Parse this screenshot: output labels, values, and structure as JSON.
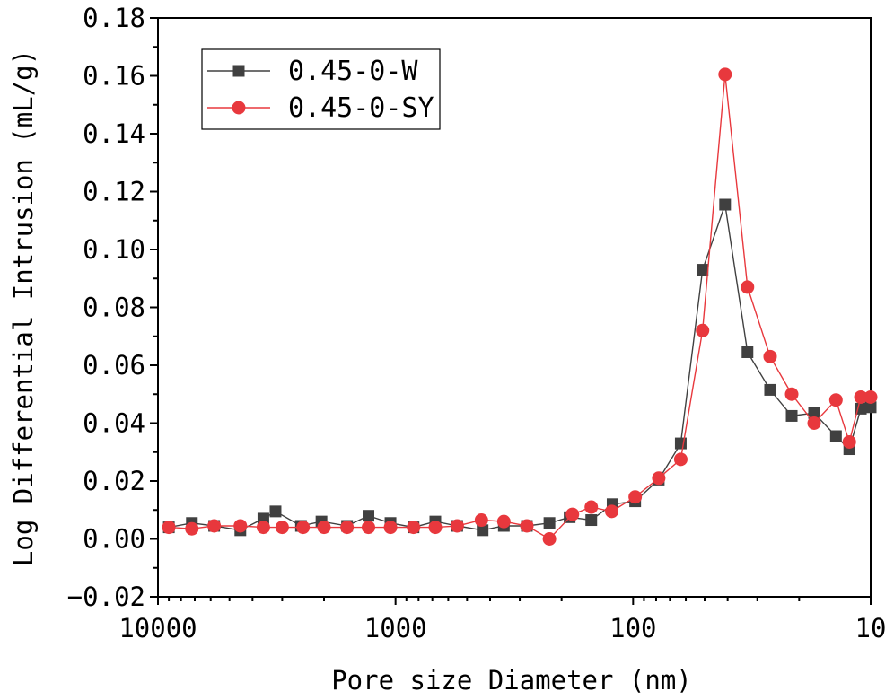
{
  "chart_data": {
    "type": "line",
    "title": "",
    "xlabel": "Pore size Diameter (nm)",
    "ylabel": "Log Differential Intrusion (mL/g)",
    "x_scale": "log",
    "x_reversed": true,
    "xlim": [
      10000,
      10
    ],
    "ylim": [
      -0.02,
      0.18
    ],
    "x_ticks": [
      {
        "value": 10000,
        "label": "10000"
      },
      {
        "value": 1000,
        "label": "1000"
      },
      {
        "value": 100,
        "label": "100"
      },
      {
        "value": 10,
        "label": "10"
      }
    ],
    "y_ticks": [
      {
        "value": -0.02,
        "label": "−0.02"
      },
      {
        "value": 0.0,
        "label": "0.00"
      },
      {
        "value": 0.02,
        "label": "0.02"
      },
      {
        "value": 0.04,
        "label": "0.04"
      },
      {
        "value": 0.06,
        "label": "0.06"
      },
      {
        "value": 0.08,
        "label": "0.08"
      },
      {
        "value": 0.1,
        "label": "0.10"
      },
      {
        "value": 0.12,
        "label": "0.12"
      },
      {
        "value": 0.14,
        "label": "0.14"
      },
      {
        "value": 0.16,
        "label": "0.16"
      },
      {
        "value": 0.18,
        "label": "0.18"
      }
    ],
    "grid": false,
    "legend_position": "top-left",
    "series": [
      {
        "name": "0.45-0-W",
        "color": "#404040",
        "marker": "square",
        "points": [
          [
            9000,
            0.004
          ],
          [
            7200,
            0.0055
          ],
          [
            5800,
            0.0045
          ],
          [
            4500,
            0.003
          ],
          [
            3600,
            0.007
          ],
          [
            3200,
            0.0095
          ],
          [
            2500,
            0.0045
          ],
          [
            2050,
            0.006
          ],
          [
            1600,
            0.0045
          ],
          [
            1300,
            0.008
          ],
          [
            1050,
            0.0055
          ],
          [
            840,
            0.004
          ],
          [
            680,
            0.006
          ],
          [
            550,
            0.0045
          ],
          [
            430,
            0.003
          ],
          [
            350,
            0.0045
          ],
          [
            280,
            0.0045
          ],
          [
            225,
            0.0055
          ],
          [
            185,
            0.0075
          ],
          [
            150,
            0.0065
          ],
          [
            122,
            0.012
          ],
          [
            98,
            0.013
          ],
          [
            78,
            0.0205
          ],
          [
            63,
            0.033
          ],
          [
            51,
            0.093
          ],
          [
            41,
            0.1155
          ],
          [
            33,
            0.0645
          ],
          [
            26.5,
            0.0515
          ],
          [
            21.5,
            0.0425
          ],
          [
            17.3,
            0.0435
          ],
          [
            14,
            0.0355
          ],
          [
            12.3,
            0.031
          ],
          [
            11,
            0.045
          ],
          [
            10,
            0.0455
          ]
        ]
      },
      {
        "name": "0.45-0-SY",
        "color": "#e8383d",
        "marker": "circle",
        "points": [
          [
            9000,
            0.004
          ],
          [
            7200,
            0.0035
          ],
          [
            5800,
            0.0045
          ],
          [
            4500,
            0.0045
          ],
          [
            3600,
            0.004
          ],
          [
            3000,
            0.004
          ],
          [
            2450,
            0.004
          ],
          [
            2000,
            0.004
          ],
          [
            1600,
            0.004
          ],
          [
            1300,
            0.004
          ],
          [
            1050,
            0.004
          ],
          [
            840,
            0.004
          ],
          [
            680,
            0.004
          ],
          [
            550,
            0.0045
          ],
          [
            435,
            0.0065
          ],
          [
            350,
            0.006
          ],
          [
            280,
            0.0045
          ],
          [
            225,
            0.0
          ],
          [
            180,
            0.0085
          ],
          [
            150,
            0.011
          ],
          [
            123,
            0.0095
          ],
          [
            98,
            0.0145
          ],
          [
            78,
            0.021
          ],
          [
            63,
            0.0275
          ],
          [
            51,
            0.072
          ],
          [
            41,
            0.1605
          ],
          [
            33,
            0.087
          ],
          [
            26.5,
            0.063
          ],
          [
            21.5,
            0.05
          ],
          [
            17.3,
            0.04
          ],
          [
            14,
            0.048
          ],
          [
            12.3,
            0.0335
          ],
          [
            11,
            0.049
          ],
          [
            10,
            0.049
          ]
        ]
      }
    ]
  }
}
